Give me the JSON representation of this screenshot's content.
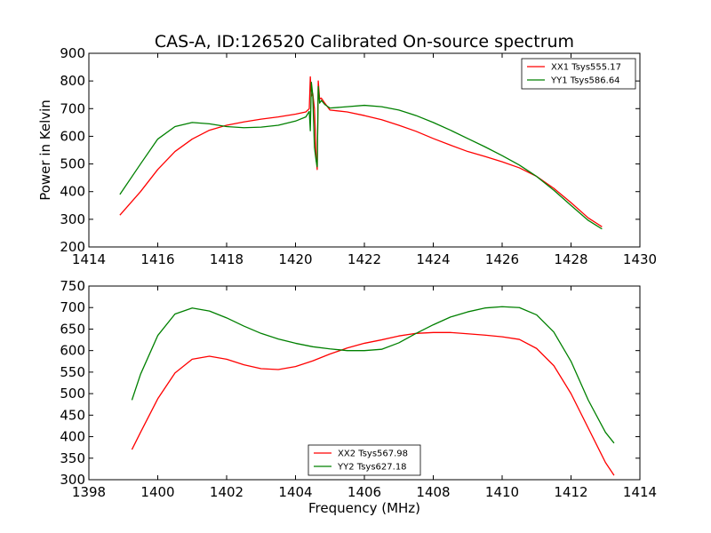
{
  "figure": {
    "title": "CAS-A, ID:126520 Calibrated On-source spectrum",
    "xlabel": "Frequency (MHz)",
    "ylabel": "Power in Kelvin"
  },
  "chart_data": [
    {
      "type": "line",
      "title": "CAS-A, ID:126520 Calibrated On-source spectrum",
      "ylabel": "Power in Kelvin",
      "xlabel": "",
      "xlim": [
        1414,
        1430
      ],
      "ylim": [
        200,
        900
      ],
      "xticks": [
        "1414",
        "1416",
        "1418",
        "1420",
        "1422",
        "1424",
        "1426",
        "1428",
        "1430"
      ],
      "yticks": [
        "200",
        "300",
        "400",
        "500",
        "600",
        "700",
        "800",
        "900"
      ],
      "grid": false,
      "legend_position": "upper right",
      "series": [
        {
          "name": "XX1 Tsys555.17",
          "color": "#ff0000",
          "x": [
            1414.9,
            1415.5,
            1416.0,
            1416.5,
            1417.0,
            1417.5,
            1418.0,
            1418.5,
            1419.0,
            1419.5,
            1420.0,
            1420.3,
            1420.4,
            1420.43,
            1420.46,
            1420.5,
            1420.55,
            1420.6,
            1420.63,
            1420.66,
            1420.7,
            1420.75,
            1420.85,
            1421.0,
            1421.5,
            1422.0,
            1422.5,
            1423.0,
            1423.5,
            1424.0,
            1424.5,
            1425.0,
            1425.5,
            1426.0,
            1426.5,
            1427.0,
            1427.5,
            1428.0,
            1428.5,
            1428.9
          ],
          "y": [
            315,
            400,
            480,
            545,
            590,
            622,
            640,
            652,
            662,
            670,
            680,
            688,
            700,
            815,
            745,
            755,
            700,
            520,
            480,
            800,
            735,
            738,
            720,
            695,
            688,
            675,
            660,
            640,
            618,
            592,
            568,
            545,
            527,
            508,
            486,
            455,
            412,
            360,
            305,
            273
          ]
        },
        {
          "name": "YY1 Tsys586.64",
          "color": "#008000",
          "x": [
            1414.9,
            1415.5,
            1416.0,
            1416.5,
            1417.0,
            1417.5,
            1418.0,
            1418.5,
            1419.0,
            1419.5,
            1420.0,
            1420.3,
            1420.4,
            1420.43,
            1420.46,
            1420.5,
            1420.55,
            1420.6,
            1420.63,
            1420.66,
            1420.7,
            1420.75,
            1420.85,
            1421.0,
            1421.5,
            1422.0,
            1422.5,
            1423.0,
            1423.5,
            1424.0,
            1424.5,
            1425.0,
            1425.5,
            1426.0,
            1426.5,
            1427.0,
            1427.5,
            1428.0,
            1428.5,
            1428.9
          ],
          "y": [
            390,
            500,
            590,
            635,
            650,
            645,
            635,
            631,
            633,
            640,
            655,
            670,
            690,
            620,
            795,
            750,
            560,
            510,
            490,
            780,
            720,
            730,
            715,
            702,
            707,
            712,
            707,
            695,
            675,
            650,
            622,
            592,
            562,
            530,
            496,
            455,
            405,
            350,
            296,
            265
          ]
        }
      ]
    },
    {
      "type": "line",
      "title": "",
      "xlabel": "Frequency (MHz)",
      "ylabel": "",
      "xlim": [
        1398,
        1414
      ],
      "ylim": [
        300,
        750
      ],
      "xticks": [
        "1398",
        "1400",
        "1402",
        "1404",
        "1406",
        "1408",
        "1410",
        "1412",
        "1414"
      ],
      "yticks": [
        "300",
        "350",
        "400",
        "450",
        "500",
        "550",
        "600",
        "650",
        "700",
        "750"
      ],
      "grid": false,
      "legend_position": "lower center",
      "series": [
        {
          "name": "XX2 Tsys567.98",
          "color": "#ff0000",
          "x": [
            1399.25,
            1399.5,
            1400.0,
            1400.5,
            1401.0,
            1401.5,
            1402.0,
            1402.5,
            1403.0,
            1403.5,
            1404.0,
            1404.5,
            1405.0,
            1405.5,
            1406.0,
            1406.5,
            1407.0,
            1407.5,
            1408.0,
            1408.5,
            1409.0,
            1409.5,
            1410.0,
            1410.5,
            1411.0,
            1411.5,
            1412.0,
            1412.5,
            1413.0,
            1413.25
          ],
          "y": [
            370,
            410,
            488,
            548,
            580,
            587,
            580,
            567,
            558,
            556,
            563,
            576,
            592,
            606,
            617,
            625,
            634,
            640,
            642,
            642,
            639,
            636,
            632,
            626,
            605,
            565,
            500,
            420,
            340,
            310
          ]
        },
        {
          "name": "YY2 Tsys627.18",
          "color": "#008000",
          "x": [
            1399.25,
            1399.5,
            1400.0,
            1400.5,
            1401.0,
            1401.5,
            1402.0,
            1402.5,
            1403.0,
            1403.5,
            1404.0,
            1404.5,
            1405.0,
            1405.5,
            1406.0,
            1406.5,
            1407.0,
            1407.5,
            1408.0,
            1408.5,
            1409.0,
            1409.5,
            1410.0,
            1410.5,
            1411.0,
            1411.5,
            1412.0,
            1412.5,
            1413.0,
            1413.25
          ],
          "y": [
            485,
            545,
            635,
            685,
            699,
            692,
            676,
            657,
            640,
            627,
            617,
            609,
            604,
            600,
            600,
            603,
            618,
            640,
            660,
            678,
            690,
            699,
            702,
            700,
            683,
            643,
            575,
            485,
            410,
            385
          ]
        }
      ]
    }
  ]
}
